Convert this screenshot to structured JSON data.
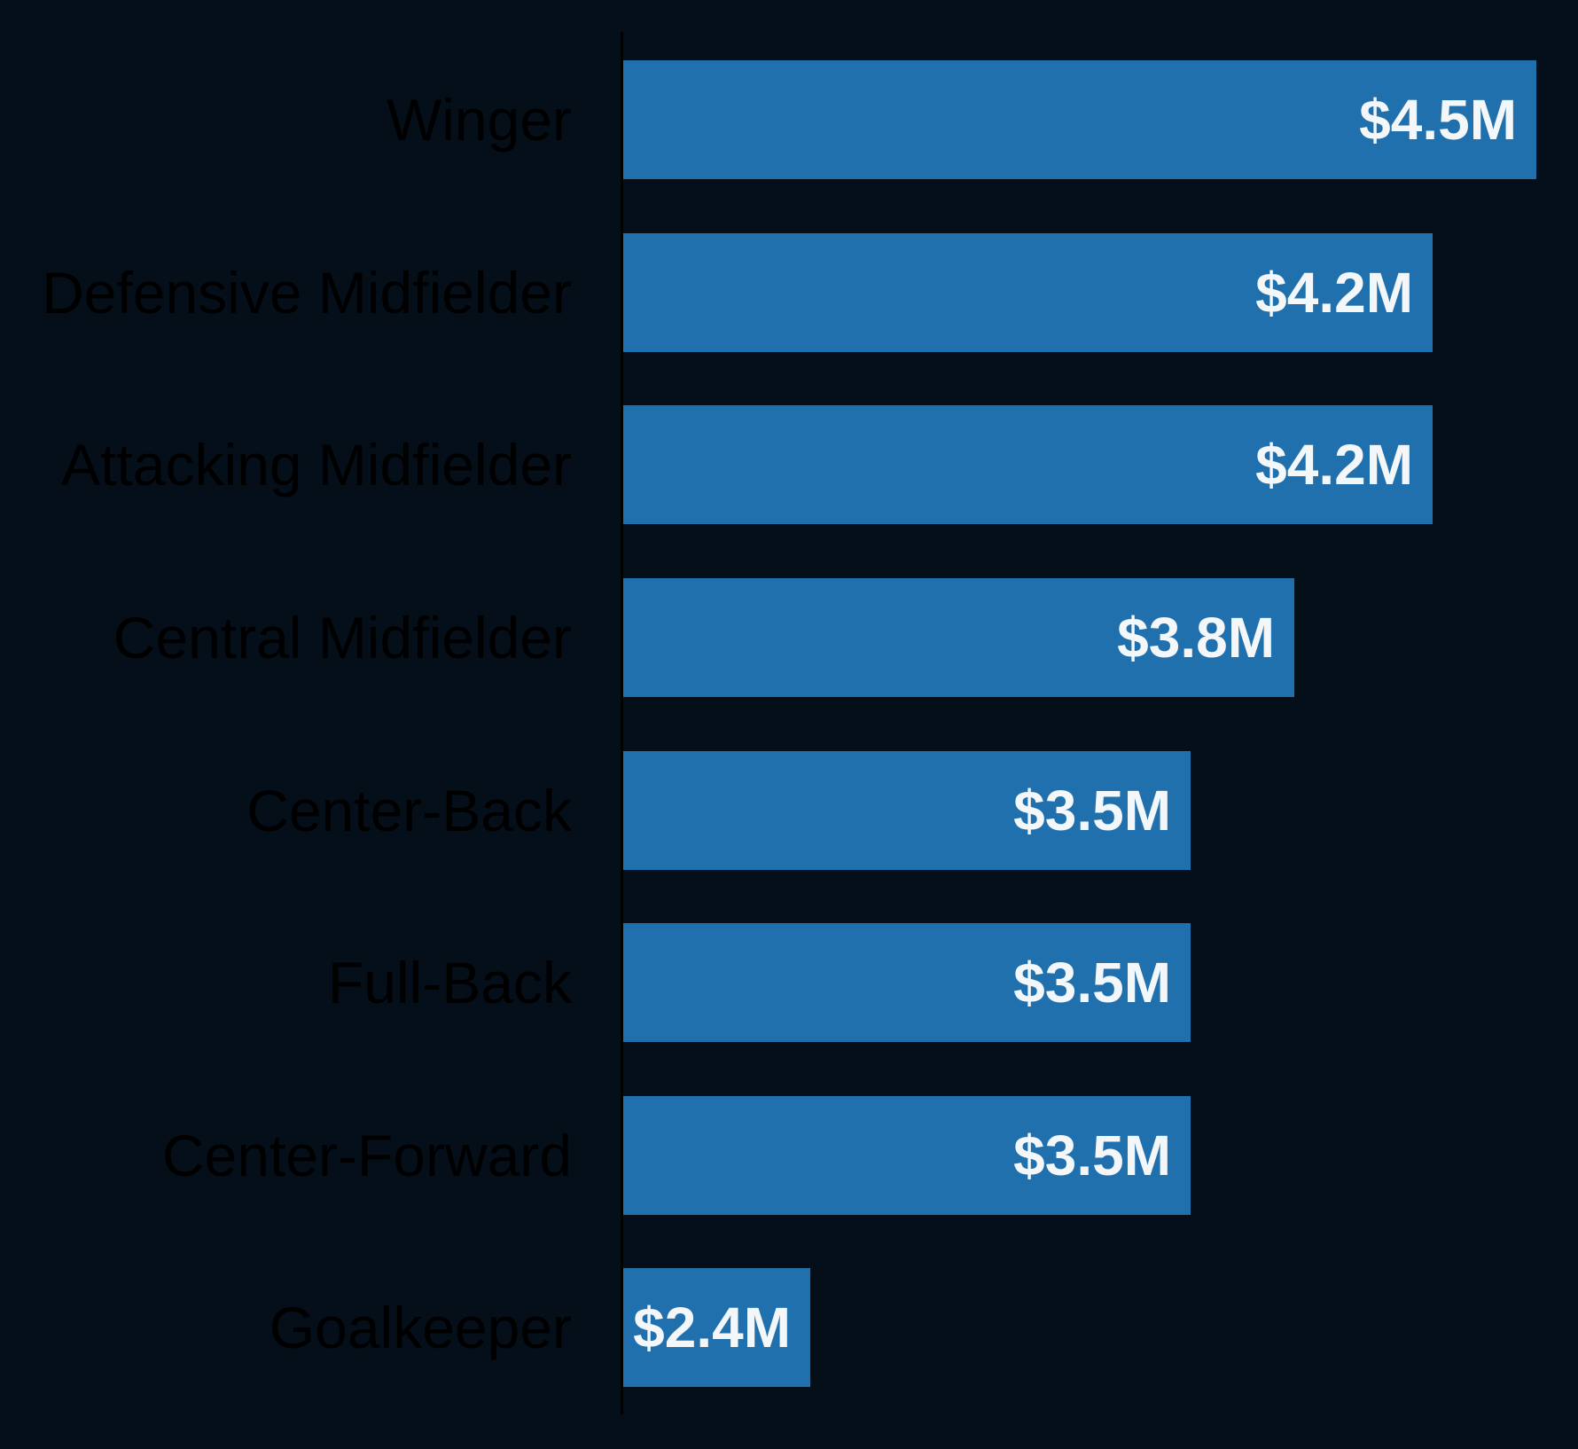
{
  "chart_data": {
    "type": "bar",
    "orientation": "horizontal",
    "categories": [
      "Winger",
      "Defensive Midfielder",
      "Attacking Midfielder",
      "Central Midfielder",
      "Center-Back",
      "Full-Back",
      "Center-Forward",
      "Goalkeeper"
    ],
    "values": [
      4.5,
      4.2,
      4.2,
      3.8,
      3.5,
      3.5,
      3.5,
      2.4
    ],
    "value_labels": [
      "$4.5M",
      "$4.2M",
      "$4.2M",
      "$3.8M",
      "$3.5M",
      "$3.5M",
      "$3.5M",
      "$2.4M"
    ],
    "unit": "USD millions",
    "xlim": [
      1.86,
      4.62
    ],
    "grid": false,
    "legend": false,
    "axis_tick_labels": [],
    "colors": {
      "bar": "#2170ae",
      "background": "#050f1a",
      "category_label": "#000000",
      "value_label": "#f4f7f9",
      "axis_line": "#000000"
    }
  }
}
